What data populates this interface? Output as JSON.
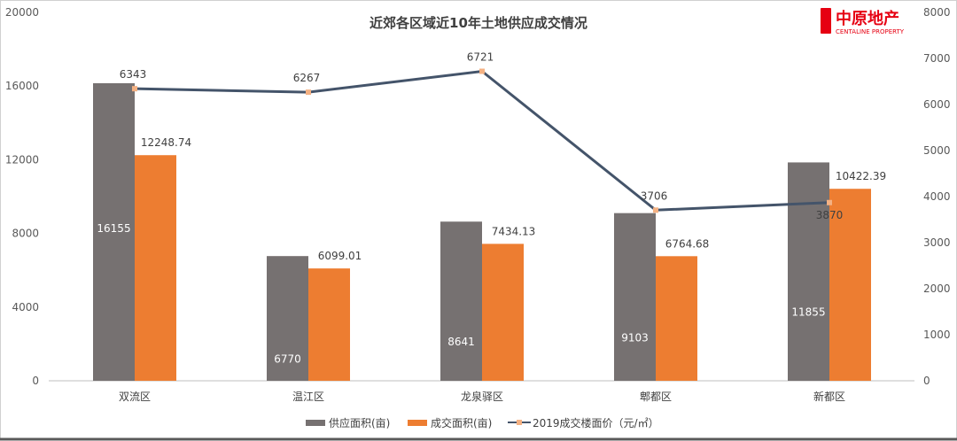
{
  "chart_data": {
    "type": "bar+line",
    "title": "近郊各区域近10年土地供应成交情况",
    "categories": [
      "双流区",
      "温江区",
      "龙泉驿区",
      "郫都区",
      "新都区"
    ],
    "series": [
      {
        "name": "供应面积(亩)",
        "type": "bar",
        "axis": "left",
        "color": "#767171",
        "values": [
          16155,
          6770,
          8641,
          9103,
          11855
        ]
      },
      {
        "name": "成交面积(亩)",
        "type": "bar",
        "axis": "left",
        "color": "#ED7D31",
        "values": [
          12248.74,
          6099.01,
          7434.13,
          6764.68,
          10422.39
        ]
      },
      {
        "name": "2019成交楼面价（元/㎡）",
        "type": "line",
        "axis": "right",
        "color": "#44546A",
        "marker_color": "#F4B183",
        "values": [
          6343,
          6267,
          6721,
          3706,
          3870
        ]
      }
    ],
    "left_axis": {
      "ylim": [
        0,
        20000
      ],
      "ticks": [
        "0",
        "4000",
        "8000",
        "12000",
        "16000",
        "20000"
      ]
    },
    "right_axis": {
      "ylim": [
        0,
        8000
      ],
      "ticks": [
        "0",
        "1000",
        "2000",
        "3000",
        "4000",
        "5000",
        "6000",
        "7000",
        "8000"
      ]
    },
    "legend": "bottom",
    "grid": false
  },
  "logo": {
    "cn": "中原地产",
    "en": "CENTALINE PROPERTY",
    "seal": "中原",
    "color": "#E60012"
  }
}
